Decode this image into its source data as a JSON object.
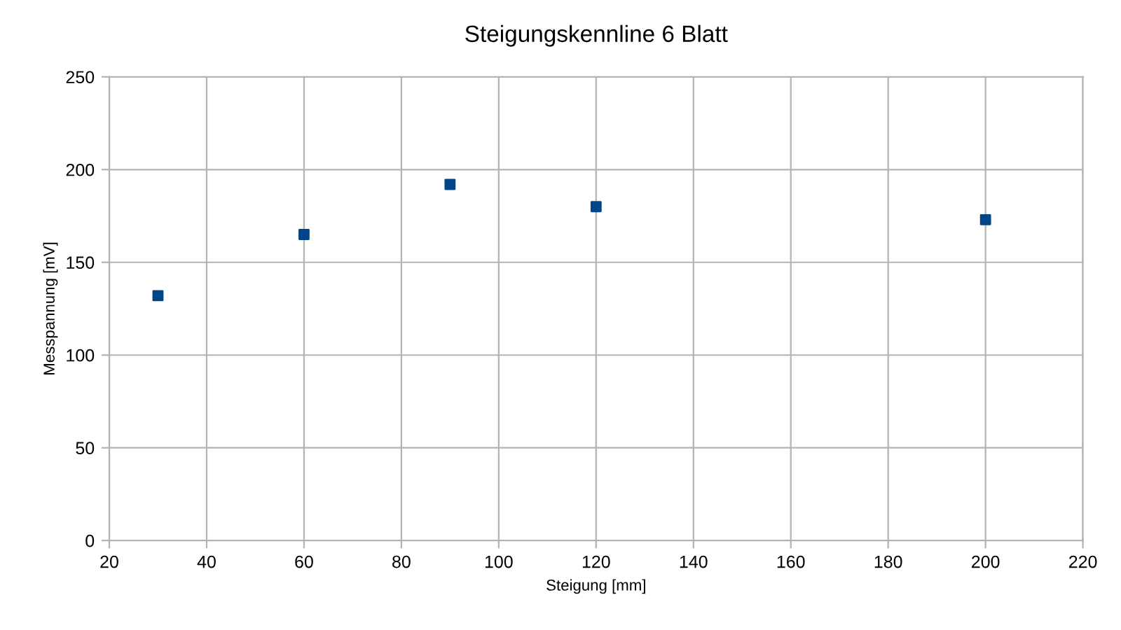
{
  "chart_data": {
    "type": "scatter",
    "title": "Steigungskennline 6 Blatt",
    "xlabel": "Steigung [mm]",
    "ylabel": "Messpannung [mV]",
    "x": [
      30,
      60,
      90,
      120,
      200
    ],
    "series": [
      {
        "color": "#004586",
        "values": [
          132,
          165,
          192,
          180,
          173
        ]
      }
    ],
    "xlim": [
      20,
      220
    ],
    "xticks": [
      20,
      40,
      60,
      80,
      100,
      120,
      140,
      160,
      180,
      200,
      220
    ],
    "ylim": [
      0,
      250
    ],
    "yticks": [
      0,
      50,
      100,
      150,
      200,
      250
    ],
    "grid": true,
    "legend": false,
    "marker": "square"
  }
}
